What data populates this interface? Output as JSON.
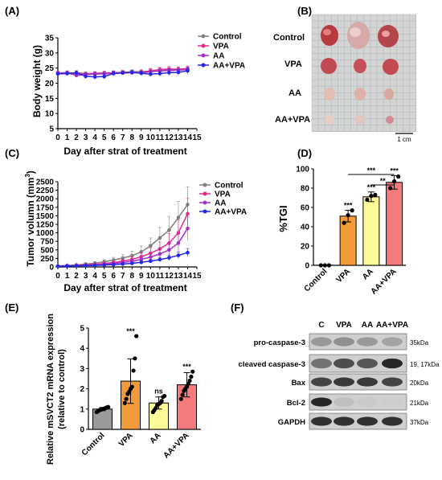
{
  "colors": {
    "control": "#7f7f7f",
    "vpa": "#e6288c",
    "aa": "#a22fc8",
    "aavpa": "#2626e6",
    "bar_control": "#9a9a9a",
    "bar_vpa": "#f39a3b",
    "bar_aa": "#fbfb99",
    "bar_aavpa": "#f47b7b"
  },
  "chart_data": [
    {
      "panel": "(A)",
      "type": "line",
      "xlabel": "Day after strat of treatment",
      "ylabel": "Body weight (g)",
      "x": [
        0,
        1,
        2,
        3,
        4,
        5,
        6,
        7,
        8,
        9,
        10,
        11,
        12,
        13,
        14
      ],
      "xlim": [
        0,
        15
      ],
      "xticks": [
        "0",
        "1",
        "2",
        "3",
        "4",
        "5",
        "6",
        "7",
        "8",
        "9",
        "10",
        "11",
        "12",
        "13",
        "14",
        "15"
      ],
      "ylim": [
        5,
        35
      ],
      "yticks": [
        "5",
        "10",
        "15",
        "20",
        "25",
        "30",
        "35"
      ],
      "legend_position": "top-right",
      "series": [
        {
          "name": "Control",
          "key": "control",
          "values": [
            23.2,
            23.3,
            23.5,
            23.2,
            23.3,
            23.4,
            23.3,
            23.6,
            23.8,
            23.8,
            24.0,
            24.2,
            24.3,
            24.5,
            24.6
          ],
          "err": [
            0.5,
            0.5,
            0.6,
            0.5,
            0.5,
            0.6,
            0.5,
            0.6,
            0.6,
            0.7,
            0.7,
            0.8,
            0.8,
            0.9,
            0.9
          ]
        },
        {
          "name": "VPA",
          "key": "vpa",
          "values": [
            23.4,
            23.5,
            23.3,
            23.0,
            23.2,
            23.3,
            23.5,
            23.6,
            23.5,
            23.6,
            24.1,
            24.5,
            24.7,
            24.6,
            24.8
          ],
          "err": [
            0.5,
            0.6,
            0.8,
            0.6,
            0.6,
            0.6,
            0.6,
            0.6,
            0.6,
            0.7,
            0.8,
            0.8,
            0.9,
            0.8,
            0.9
          ]
        },
        {
          "name": "AA",
          "key": "aa",
          "values": [
            23.3,
            23.4,
            22.6,
            22.9,
            23.0,
            23.1,
            23.3,
            23.4,
            23.5,
            23.4,
            23.8,
            24.0,
            24.2,
            24.3,
            24.5
          ],
          "err": [
            0.5,
            0.5,
            0.7,
            0.6,
            0.6,
            0.6,
            0.6,
            0.6,
            0.6,
            0.6,
            0.7,
            0.8,
            0.8,
            0.8,
            0.8
          ]
        },
        {
          "name": "AA+VPA",
          "key": "aavpa",
          "values": [
            23.1,
            23.2,
            23.4,
            22.3,
            22.1,
            22.2,
            23.2,
            23.4,
            23.6,
            23.3,
            23.0,
            23.2,
            23.5,
            23.6,
            24.1
          ],
          "err": [
            0.5,
            0.6,
            0.7,
            0.9,
            0.9,
            0.9,
            0.7,
            0.6,
            0.7,
            0.7,
            0.8,
            0.9,
            0.9,
            0.9,
            1.0
          ]
        }
      ]
    },
    {
      "panel": "(C)",
      "type": "line",
      "xlabel": "Day after strat of treatment",
      "ylabel_main": "Tumor volumn (mm",
      "ylabel_sup": "3",
      "ylabel_end": ")",
      "x": [
        0,
        1,
        2,
        3,
        4,
        5,
        6,
        7,
        8,
        9,
        10,
        11,
        12,
        13,
        14
      ],
      "xlim": [
        0,
        15
      ],
      "xticks": [
        "0",
        "1",
        "2",
        "3",
        "4",
        "5",
        "6",
        "7",
        "8",
        "9",
        "10",
        "11",
        "12",
        "13",
        "14",
        "15"
      ],
      "ylim": [
        0,
        2500
      ],
      "yticks": [
        "0",
        "250",
        "500",
        "750",
        "1000",
        "1250",
        "1500",
        "1750",
        "2000",
        "2250",
        "2500"
      ],
      "legend_position": "top-right",
      "series": [
        {
          "name": "Control",
          "key": "control",
          "values": [
            30,
            45,
            60,
            85,
            110,
            150,
            200,
            260,
            330,
            440,
            620,
            850,
            1080,
            1450,
            1830
          ],
          "err": [
            10,
            15,
            20,
            30,
            40,
            60,
            80,
            100,
            130,
            170,
            230,
            310,
            400,
            470,
            520
          ]
        },
        {
          "name": "VPA",
          "key": "vpa",
          "values": [
            25,
            35,
            45,
            60,
            75,
            100,
            130,
            170,
            220,
            300,
            400,
            530,
            700,
            1000,
            1560
          ],
          "err": [
            10,
            12,
            15,
            20,
            25,
            35,
            45,
            60,
            80,
            110,
            150,
            200,
            280,
            380,
            450
          ]
        },
        {
          "name": "AA",
          "key": "aa",
          "values": [
            22,
            30,
            40,
            50,
            62,
            80,
            100,
            130,
            165,
            220,
            290,
            380,
            500,
            700,
            1130
          ],
          "err": [
            8,
            10,
            12,
            16,
            20,
            28,
            35,
            45,
            60,
            80,
            110,
            150,
            200,
            260,
            350
          ]
        },
        {
          "name": "AA+VPA",
          "key": "aavpa",
          "values": [
            20,
            25,
            30,
            38,
            45,
            55,
            68,
            85,
            105,
            135,
            170,
            215,
            270,
            340,
            420
          ],
          "err": [
            5,
            7,
            9,
            11,
            13,
            16,
            20,
            25,
            30,
            40,
            50,
            65,
            80,
            100,
            120
          ]
        }
      ]
    },
    {
      "panel": "(D)",
      "type": "bar",
      "ylabel": "%TGI",
      "categories": [
        "Control",
        "VPA",
        "AA",
        "AA+VPA"
      ],
      "keys": [
        "bar_control",
        "bar_vpa",
        "bar_aa",
        "bar_aavpa"
      ],
      "values": [
        0,
        51,
        71,
        86
      ],
      "err": [
        0,
        6,
        5,
        7
      ],
      "points": [
        [
          0,
          0,
          0
        ],
        [
          44,
          52,
          57
        ],
        [
          68,
          72,
          73
        ],
        [
          80,
          87,
          92
        ]
      ],
      "labels": [
        "",
        "***",
        "***",
        "***"
      ],
      "brackets": [
        {
          "from": 1,
          "to": 3,
          "label": "***"
        },
        {
          "from": 2,
          "to": 3,
          "label": "**"
        }
      ],
      "ylim": [
        0,
        100
      ],
      "yticks": [
        "0",
        "20",
        "40",
        "60",
        "80",
        "100"
      ]
    },
    {
      "panel": "(E)",
      "type": "bar",
      "ylabel_line1": "Relative mSVCT2 mRNA expression",
      "ylabel_line2": "(relative to control)",
      "categories": [
        "Control",
        "VPA",
        "AA",
        "AA+VPA"
      ],
      "keys": [
        "bar_control",
        "bar_vpa",
        "bar_aa",
        "bar_aavpa"
      ],
      "values": [
        1.0,
        2.38,
        1.3,
        2.2
      ],
      "err": [
        0.08,
        1.1,
        0.3,
        0.6
      ],
      "points": [
        [
          0.85,
          0.9,
          0.95,
          0.97,
          1.0,
          1.02,
          1.05,
          1.08,
          1.1
        ],
        [
          1.3,
          1.5,
          1.75,
          1.85,
          2.0,
          2.1,
          2.9,
          3.5,
          4.6
        ],
        [
          0.85,
          0.95,
          1.05,
          1.2,
          1.25,
          1.3,
          1.4,
          1.6,
          1.65
        ],
        [
          1.5,
          1.7,
          1.9,
          2.0,
          2.1,
          2.25,
          2.4,
          2.6,
          2.85
        ]
      ],
      "labels": [
        "",
        "***",
        "ns",
        "***"
      ],
      "ylim": [
        0,
        5
      ],
      "yticks": [
        "0",
        "1",
        "2",
        "3",
        "4",
        "5"
      ]
    }
  ],
  "panel_B": {
    "label": "(B)",
    "rows": [
      "Control",
      "VPA",
      "AA",
      "AA+VPA"
    ],
    "scale_label": "1 cm"
  },
  "panel_F": {
    "label": "(F)",
    "columns": [
      "C",
      "VPA",
      "AA",
      "AA+VPA"
    ],
    "rows": [
      {
        "name": "pro-caspase-3",
        "kda": "35kDa",
        "intensity": [
          0.35,
          0.4,
          0.35,
          0.3
        ]
      },
      {
        "name": "cleaved caspase-3",
        "kda": "19, 17kDa",
        "intensity": [
          0.55,
          0.75,
          0.7,
          0.95
        ]
      },
      {
        "name": "Bax",
        "kda": "20kDa",
        "intensity": [
          0.8,
          0.85,
          0.85,
          0.8
        ]
      },
      {
        "name": "Bcl-2",
        "kda": "21kDa",
        "intensity": [
          0.95,
          0.15,
          0.1,
          0.08
        ]
      },
      {
        "name": "GAPDH",
        "kda": "37kDa",
        "intensity": [
          0.9,
          0.9,
          0.9,
          0.9
        ]
      }
    ]
  }
}
